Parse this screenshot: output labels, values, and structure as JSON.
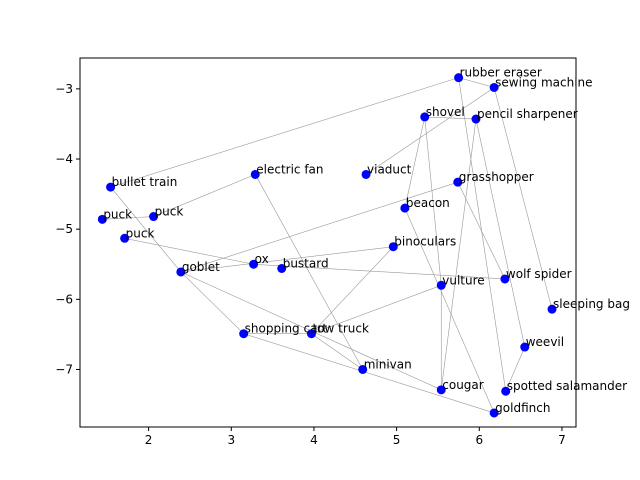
{
  "chart_data": {
    "type": "scatter",
    "title": "",
    "xlabel": "",
    "ylabel": "",
    "xlim": [
      1.17,
      7.17
    ],
    "ylim": [
      -7.82,
      -2.56
    ],
    "xticks": [
      2,
      3,
      4,
      5,
      6,
      7
    ],
    "yticks": [
      -7,
      -6,
      -5,
      -4,
      -3
    ],
    "grid": false,
    "point_color": "#0000ff",
    "edge_color": "#999999",
    "points": [
      {
        "label": "rubber eraser",
        "x": 5.75,
        "y": -2.84
      },
      {
        "label": "sewing machine",
        "x": 6.18,
        "y": -2.98
      },
      {
        "label": "shovel",
        "x": 5.34,
        "y": -3.4
      },
      {
        "label": "pencil sharpener",
        "x": 5.96,
        "y": -3.43
      },
      {
        "label": "viaduct",
        "x": 4.63,
        "y": -4.22
      },
      {
        "label": "grasshopper",
        "x": 5.74,
        "y": -4.33
      },
      {
        "label": "electric fan",
        "x": 3.29,
        "y": -4.22
      },
      {
        "label": "bullet train",
        "x": 1.54,
        "y": -4.4
      },
      {
        "label": "beacon",
        "x": 5.1,
        "y": -4.7
      },
      {
        "label": "puck",
        "x": 1.44,
        "y": -4.86
      },
      {
        "label": "puck",
        "x": 2.06,
        "y": -4.82
      },
      {
        "label": "puck",
        "x": 1.71,
        "y": -5.13
      },
      {
        "label": "binoculars",
        "x": 4.96,
        "y": -5.25
      },
      {
        "label": "goblet",
        "x": 2.39,
        "y": -5.61
      },
      {
        "label": "ox",
        "x": 3.27,
        "y": -5.5
      },
      {
        "label": "bustard",
        "x": 3.61,
        "y": -5.56
      },
      {
        "label": "vulture",
        "x": 5.54,
        "y": -5.8
      },
      {
        "label": "wolf spider",
        "x": 6.31,
        "y": -5.71
      },
      {
        "label": "sleeping bag",
        "x": 6.88,
        "y": -6.14
      },
      {
        "label": "shopping cart",
        "x": 3.15,
        "y": -6.49
      },
      {
        "label": "tow truck",
        "x": 3.97,
        "y": -6.49
      },
      {
        "label": "weevil",
        "x": 6.55,
        "y": -6.68
      },
      {
        "label": "minivan",
        "x": 4.59,
        "y": -7.0
      },
      {
        "label": "cougar",
        "x": 5.54,
        "y": -7.29
      },
      {
        "label": "spotted salamander",
        "x": 6.32,
        "y": -7.31
      },
      {
        "label": "goldfinch",
        "x": 6.18,
        "y": -7.62
      }
    ],
    "edges": [
      [
        0,
        7
      ],
      [
        0,
        1
      ],
      [
        0,
        24
      ],
      [
        1,
        4
      ],
      [
        1,
        18
      ],
      [
        2,
        3
      ],
      [
        2,
        16
      ],
      [
        3,
        21
      ],
      [
        3,
        23
      ],
      [
        5,
        13
      ],
      [
        5,
        17
      ],
      [
        6,
        10
      ],
      [
        6,
        22
      ],
      [
        7,
        13
      ],
      [
        8,
        25
      ],
      [
        9,
        10
      ],
      [
        11,
        14
      ],
      [
        12,
        13
      ],
      [
        12,
        20
      ],
      [
        13,
        19
      ],
      [
        13,
        23
      ],
      [
        14,
        17
      ],
      [
        16,
        23
      ],
      [
        16,
        20
      ],
      [
        19,
        20
      ],
      [
        19,
        25
      ],
      [
        20,
        22
      ],
      [
        21,
        24
      ],
      [
        8,
        2
      ]
    ]
  }
}
